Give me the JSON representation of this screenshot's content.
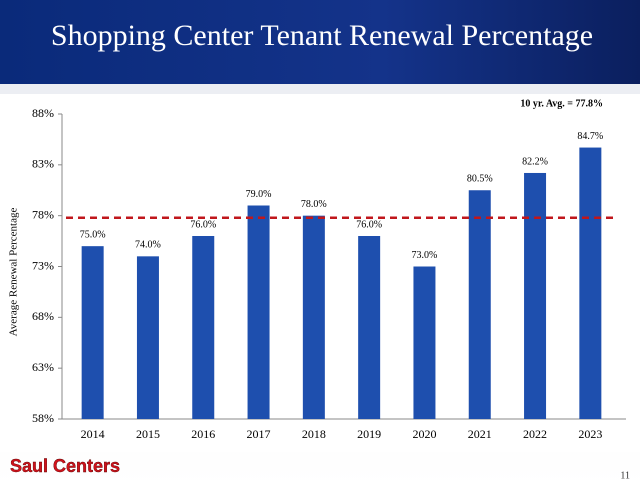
{
  "chart_data": {
    "type": "bar",
    "title": "Shopping Center Tenant Renewal Percentage",
    "y_label": "Average Renewal Percentage",
    "categories": [
      "2014",
      "2015",
      "2016",
      "2017",
      "2018",
      "2019",
      "2020",
      "2021",
      "2022",
      "2023"
    ],
    "values": [
      75.0,
      74.0,
      76.0,
      79.0,
      78.0,
      76.0,
      73.0,
      80.5,
      82.2,
      84.7
    ],
    "value_labels": [
      "75.0%",
      "74.0%",
      "76.0%",
      "79.0%",
      "78.0%",
      "76.0%",
      "73.0%",
      "80.5%",
      "82.2%",
      "84.7%"
    ],
    "color": "#1e4fae",
    "ylim": [
      58,
      88
    ],
    "yticks": [
      {
        "value": 58,
        "label": "58%"
      },
      {
        "value": 63,
        "label": "63%"
      },
      {
        "value": 68,
        "label": "68%"
      },
      {
        "value": 73,
        "label": "73%"
      },
      {
        "value": 78,
        "label": "78%"
      },
      {
        "value": 83,
        "label": "83%"
      },
      {
        "value": 88,
        "label": "88%"
      }
    ],
    "reference_line": {
      "value": 77.8,
      "label": "10 yr. Avg. = 77.8%",
      "color": "#c0171c"
    }
  },
  "footer": {
    "brand": "Saul Centers",
    "page_number": "11"
  }
}
